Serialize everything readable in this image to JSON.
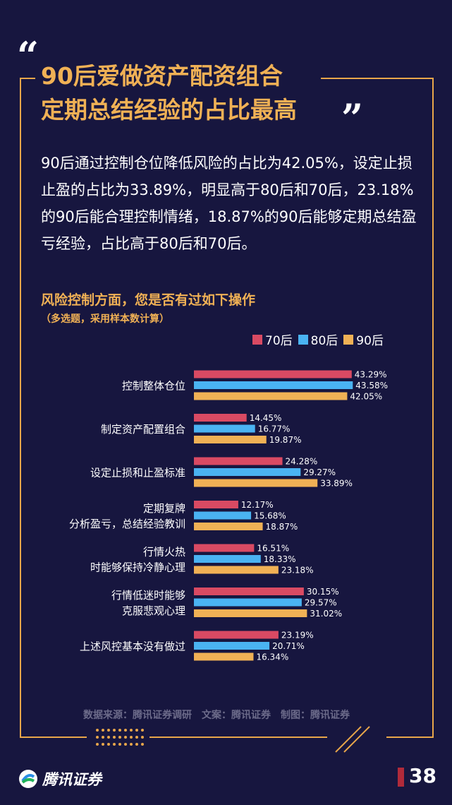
{
  "header": {
    "quote_open": "“",
    "quote_close": "”",
    "title_line1": "90后爱做资产配资组合",
    "title_line2": "定期总结经验的占比最高"
  },
  "intro": "90后通过控制仓位降低风险的占比为42.05%，设定止损止盈的占比为33.89%，明显高于80后和70后，23.18%的90后能合理控制情绪，18.87%的90后能够定期总结盈亏经验，占比高于80后和70后。",
  "chart_data": {
    "type": "bar",
    "orientation": "horizontal",
    "title": "风险控制方面，您是否有过如下操作",
    "subtitle": "（多选题，采用样本数计算）",
    "categories": [
      [
        "控制整体仓位"
      ],
      [
        "制定资产配置组合"
      ],
      [
        "设定止损和止盈标准"
      ],
      [
        "定期复牌",
        "分析盈亏，总结经验教训"
      ],
      [
        "行情火热",
        "时能够保持冷静心理"
      ],
      [
        "行情低迷时能够",
        "克服悲观心理"
      ],
      [
        "上述风控基本没有做过"
      ]
    ],
    "series": [
      {
        "name": "70后",
        "color": "#d94a63",
        "values": [
          43.29,
          14.45,
          24.28,
          12.17,
          16.51,
          30.15,
          23.19
        ],
        "labels": [
          "43.29%",
          "14.45%",
          "24.28%",
          "12.17%",
          "16.51%",
          "30.15%",
          "23.19%"
        ]
      },
      {
        "name": "80后",
        "color": "#4ab3f2",
        "values": [
          43.58,
          16.77,
          29.27,
          15.68,
          18.33,
          29.57,
          20.71
        ],
        "labels": [
          "43.58%",
          "16.77%",
          "29.27%",
          "15.68%",
          "18.33%",
          "29.57%",
          "20.71%"
        ]
      },
      {
        "name": "90后",
        "color": "#f0b155",
        "values": [
          42.05,
          19.87,
          33.89,
          18.87,
          23.18,
          31.02,
          16.34
        ],
        "labels": [
          "42.05%",
          "19.87%",
          "33.89%",
          "18.87%",
          "23.18%",
          "31.02%",
          "16.34%"
        ]
      }
    ],
    "xlim": [
      0,
      50
    ],
    "grid": false,
    "legend_position": "top-right"
  },
  "footer": {
    "source": "数据来源：腾讯证券调研　文案：腾讯证券　制图：腾讯证券",
    "logo_text": "腾讯证券",
    "page_number": "38"
  }
}
